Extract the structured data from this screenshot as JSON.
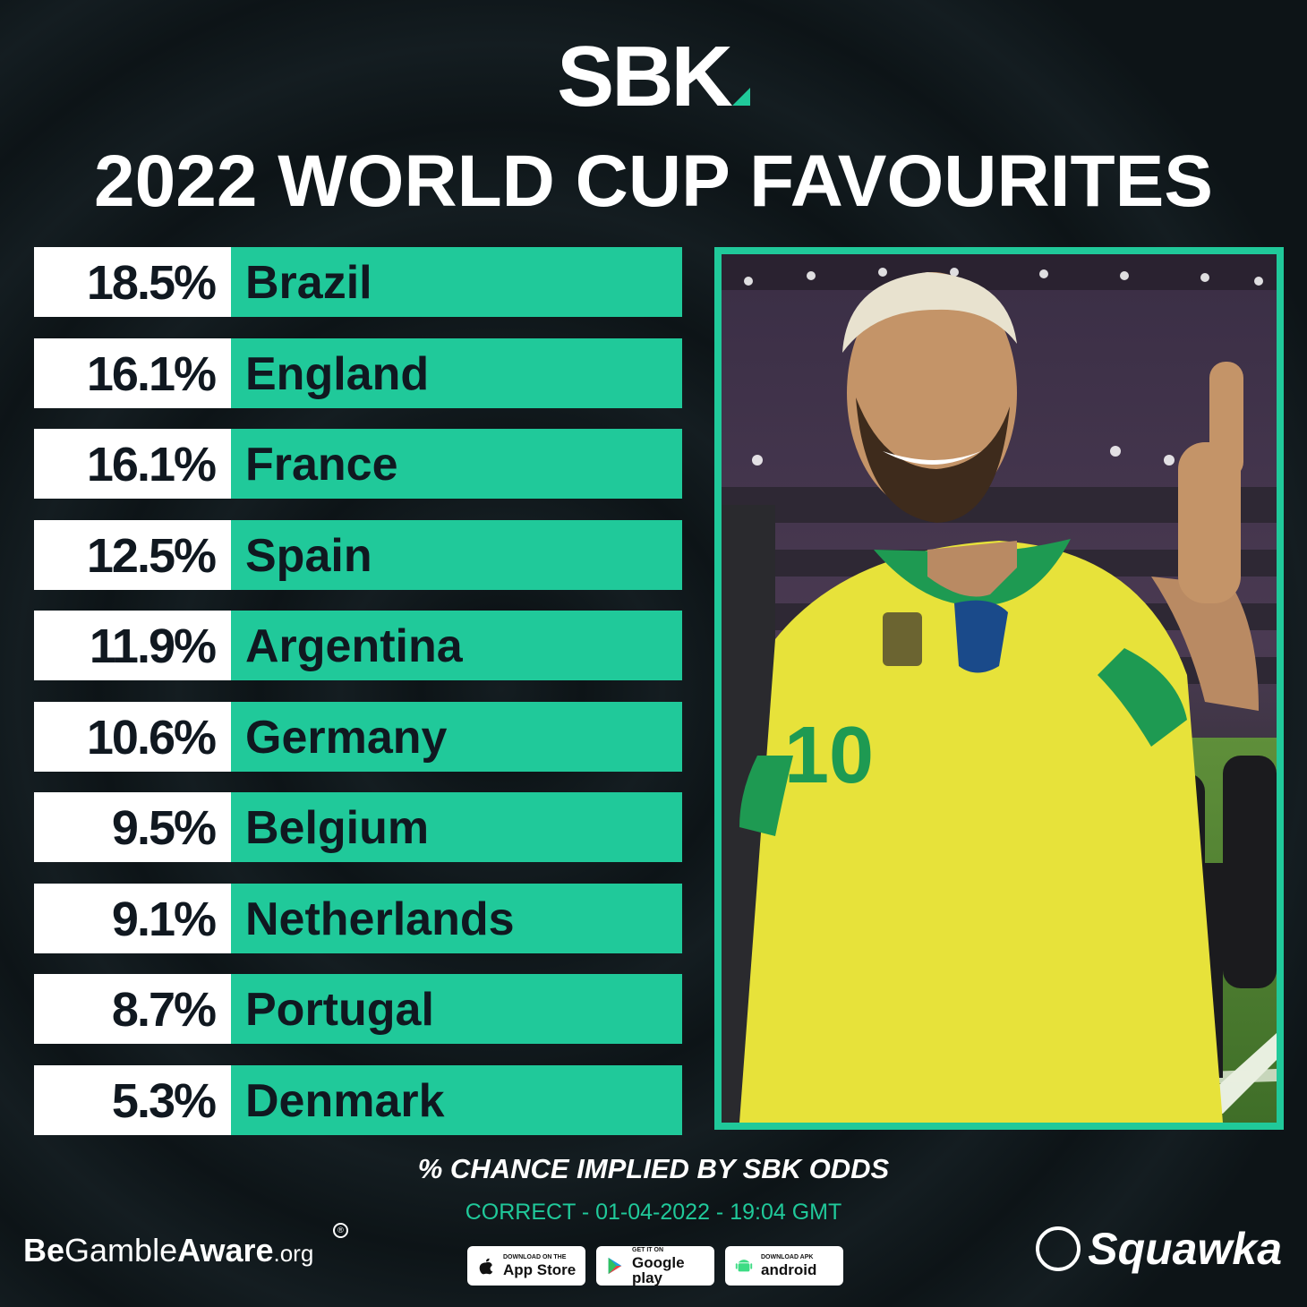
{
  "header": {
    "logo_text": "SBK",
    "title": "2022 WORLD CUP FAVOURITES"
  },
  "chart_data": {
    "type": "table",
    "title": "2022 WORLD CUP FAVOURITES",
    "categories": [
      "Brazil",
      "England",
      "France",
      "Spain",
      "Argentina",
      "Germany",
      "Belgium",
      "Netherlands",
      "Portugal",
      "Denmark"
    ],
    "values": [
      18.5,
      16.1,
      16.1,
      12.5,
      11.9,
      10.6,
      9.5,
      9.1,
      8.7,
      5.3
    ],
    "labels": [
      "18.5%",
      "16.1%",
      "16.1%",
      "12.5%",
      "11.9%",
      "10.6%",
      "9.5%",
      "9.1%",
      "8.7%",
      "5.3%"
    ]
  },
  "footer": {
    "subtitle": "% CHANCE IMPLIED BY SBK ODDS",
    "correct_note": "CORRECT - 01-04-2022 - 19:04 GMT",
    "gamble_be": "Be",
    "gamble_gamble": "Gamble",
    "gamble_aware": "Aware",
    "gamble_org": ".org",
    "squawka": "Squawka",
    "badges": [
      {
        "small": "DOWNLOAD ON THE",
        "big": "App Store",
        "icon": "apple-icon"
      },
      {
        "small": "GET IT ON",
        "big": "Google play",
        "icon": "google-play-icon"
      },
      {
        "small": "DOWNLOAD APK",
        "big": "android",
        "icon": "android-icon"
      }
    ]
  },
  "colors": {
    "accent": "#20c99a",
    "background": "#0d1417",
    "pct_background": "#ffffff",
    "text_dark": "#101820"
  }
}
